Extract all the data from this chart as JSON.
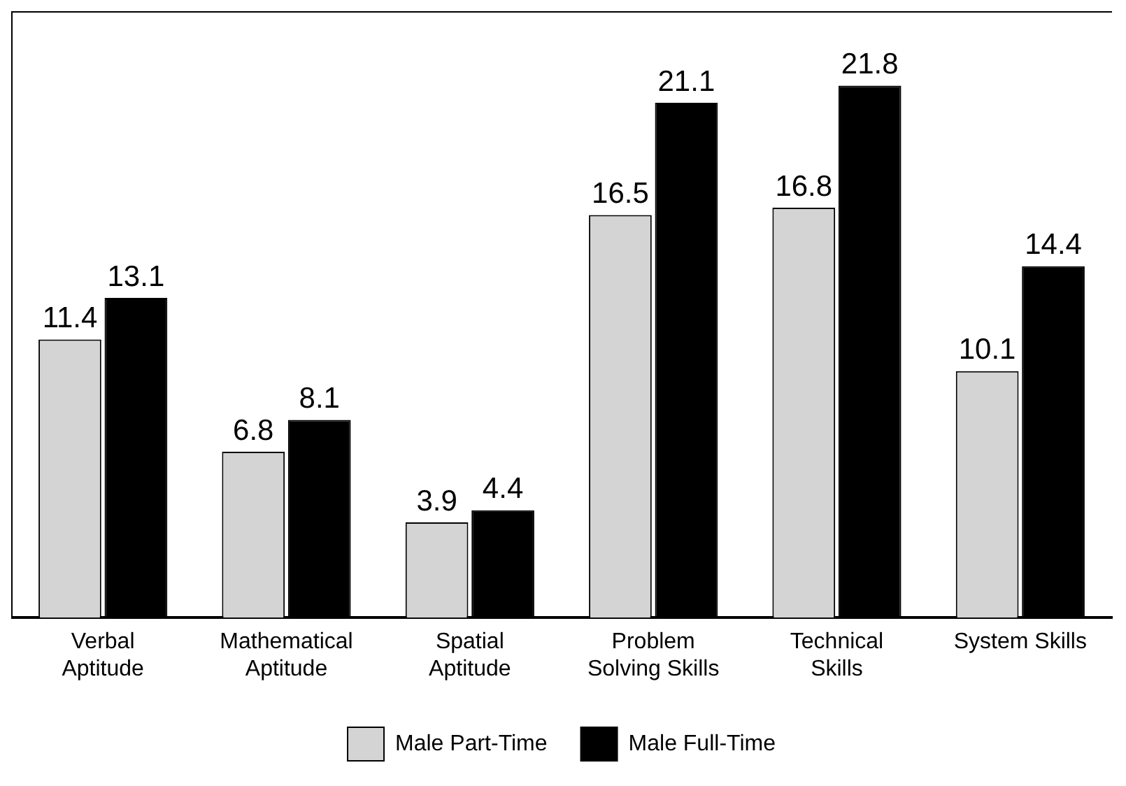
{
  "chart_data": {
    "type": "bar",
    "categories": [
      "Verbal Aptitude",
      "Mathematical Aptitude",
      "Spatial Aptitude",
      "Problem Solving Skills",
      "Technical Skills",
      "System Skills"
    ],
    "series": [
      {
        "name": "Male Part-Time",
        "color": "#d4d4d4",
        "values": [
          11.4,
          6.8,
          3.9,
          16.5,
          16.8,
          10.1
        ]
      },
      {
        "name": "Male Full-Time",
        "color": "#000000",
        "values": [
          13.1,
          8.1,
          4.4,
          21.1,
          21.8,
          14.4
        ]
      }
    ],
    "data_labels": true,
    "legend": "bottom",
    "grid": false,
    "tick_labels": "x"
  }
}
